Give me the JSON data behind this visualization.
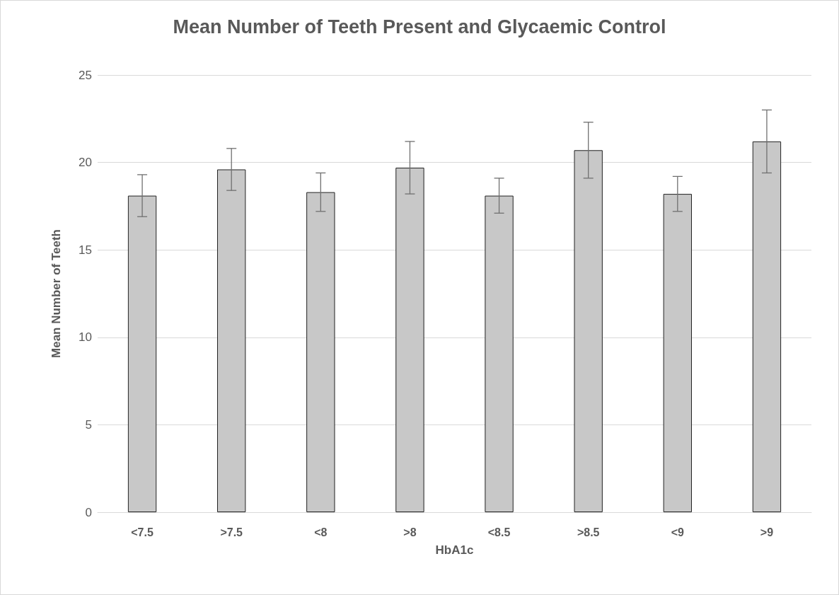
{
  "chart_data": {
    "type": "bar",
    "title": "Mean Number of Teeth Present and Glycaemic Control",
    "xlabel": "HbA1c",
    "ylabel": "Mean Number of Teeth",
    "categories": [
      "<7.5",
      ">7.5",
      "<8",
      ">8",
      "<8.5",
      ">8.5",
      "<9",
      ">9"
    ],
    "values": [
      18.1,
      19.6,
      18.3,
      19.7,
      18.1,
      20.7,
      18.2,
      21.2
    ],
    "errors": [
      1.2,
      1.2,
      1.1,
      1.5,
      1.0,
      1.6,
      1.0,
      1.8
    ],
    "color": "#c8c8c8",
    "ylim": [
      0,
      25
    ],
    "yticks": [
      0,
      5,
      10,
      15,
      20,
      25
    ],
    "grid": "y"
  }
}
